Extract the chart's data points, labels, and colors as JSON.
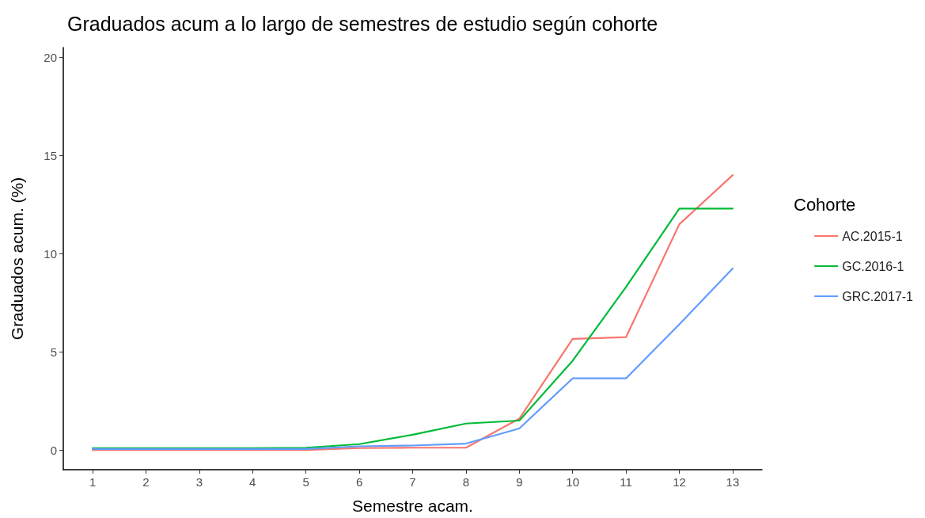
{
  "chart_data": {
    "type": "line",
    "title": "Graduados acum a lo largo de semestres de estudio según cohorte",
    "xlabel": "Semestre acam.",
    "ylabel": "Graduados acum. (%)",
    "legend_title": "Cohorte",
    "legend": "right",
    "grid": false,
    "marker": "none",
    "line_style": "solid",
    "x": [
      1,
      2,
      3,
      4,
      5,
      6,
      7,
      8,
      9,
      10,
      11,
      12,
      13
    ],
    "xlim": [
      0.45,
      13.55
    ],
    "xticks": [
      1,
      2,
      3,
      4,
      5,
      6,
      7,
      8,
      9,
      10,
      11,
      12,
      13
    ],
    "ylim": [
      -1,
      20.5
    ],
    "yticks": [
      0,
      5,
      10,
      15,
      20
    ],
    "series": [
      {
        "name": "AC.2015-1",
        "color": "#f8766d",
        "values": [
          0,
          0,
          0,
          0,
          0,
          0.1,
          0.12,
          0.12,
          1.6,
          5.66,
          5.75,
          11.5,
          14
        ]
      },
      {
        "name": "GC.2016-1",
        "color": "#00ba38",
        "values": [
          0.1,
          0.1,
          0.1,
          0.1,
          0.12,
          0.3,
          0.78,
          1.35,
          1.5,
          4.55,
          8.3,
          12.3,
          12.3
        ]
      },
      {
        "name": "GRC.2017-1",
        "color": "#619cff",
        "values": [
          0.05,
          0.05,
          0.05,
          0.05,
          0.05,
          0.19,
          0.23,
          0.33,
          1.1,
          3.65,
          3.65,
          6.4,
          9.25
        ]
      }
    ]
  }
}
